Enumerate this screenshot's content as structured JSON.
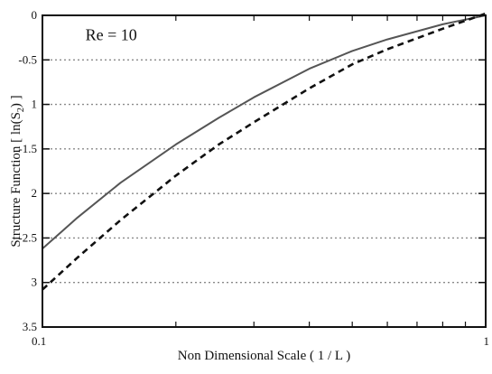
{
  "chart_data": {
    "type": "line",
    "title": "",
    "xlabel": "Non Dimensional Scale ( 1 / L )",
    "ylabel": "Structure Function [ ln(S2) ]",
    "ylabel_parts": {
      "main": "Structure Function [ ln(S",
      "sub": "2",
      "tail": ") ]"
    },
    "xscale": "log",
    "xlim": [
      0.1,
      1
    ],
    "ylim": [
      -3.5,
      0
    ],
    "x_tick_labels": [
      {
        "value": 0.1,
        "label": "0.1"
      },
      {
        "value": 1,
        "label": "1"
      }
    ],
    "y_tick_labels": [
      {
        "value": 0,
        "label": "0"
      },
      {
        "value": -0.5,
        "label": "-0.5"
      },
      {
        "value": -1,
        "label": "1"
      },
      {
        "value": -1.5,
        "label": "-1.5"
      },
      {
        "value": -2,
        "label": "2"
      },
      {
        "value": -2.5,
        "label": "-2.5"
      },
      {
        "value": -3,
        "label": "3"
      },
      {
        "value": -3.5,
        "label": "3.5"
      }
    ],
    "grid": "dotted horizontal at labeled y ticks",
    "annotations": [
      {
        "text": "Re = 10",
        "x": 0.125,
        "y": -0.28
      }
    ],
    "series": [
      {
        "style": "solid",
        "color": "#555555",
        "points": [
          [
            0.1,
            -2.62
          ],
          [
            0.12,
            -2.27
          ],
          [
            0.15,
            -1.88
          ],
          [
            0.2,
            -1.45
          ],
          [
            0.25,
            -1.15
          ],
          [
            0.3,
            -0.92
          ],
          [
            0.4,
            -0.6
          ],
          [
            0.5,
            -0.4
          ],
          [
            0.6,
            -0.27
          ],
          [
            0.8,
            -0.1
          ],
          [
            1.0,
            0.0
          ]
        ]
      },
      {
        "style": "dashed",
        "color": "#111111",
        "points": [
          [
            0.1,
            -3.08
          ],
          [
            0.12,
            -2.72
          ],
          [
            0.15,
            -2.3
          ],
          [
            0.2,
            -1.8
          ],
          [
            0.25,
            -1.45
          ],
          [
            0.3,
            -1.2
          ],
          [
            0.4,
            -0.82
          ],
          [
            0.5,
            -0.55
          ],
          [
            0.6,
            -0.38
          ],
          [
            0.8,
            -0.15
          ],
          [
            1.0,
            0.02
          ]
        ]
      }
    ]
  }
}
